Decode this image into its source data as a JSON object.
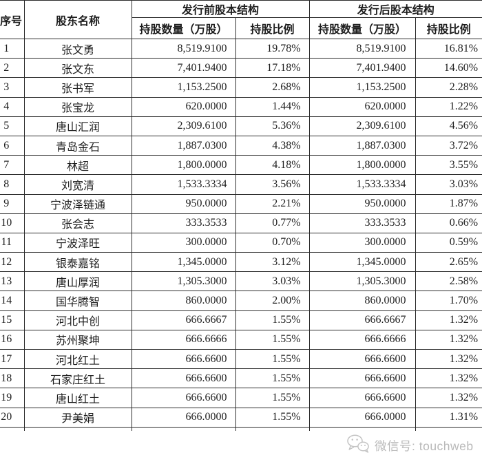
{
  "table": {
    "col_headers": {
      "index": "序号",
      "name": "股东名称",
      "pre_group": "发行前股本结构",
      "post_group": "发行后股本结构",
      "qty": "持股数量（万股）",
      "ratio": "持股比例"
    },
    "rows": [
      {
        "no": "1",
        "name": "张文勇",
        "pre_qty": "8,519.9100",
        "pre_ratio": "19.78%",
        "post_qty": "8,519.9100",
        "post_ratio": "16.81%"
      },
      {
        "no": "2",
        "name": "张文东",
        "pre_qty": "7,401.9400",
        "pre_ratio": "17.18%",
        "post_qty": "7,401.9400",
        "post_ratio": "14.60%"
      },
      {
        "no": "3",
        "name": "张书军",
        "pre_qty": "1,153.2500",
        "pre_ratio": "2.68%",
        "post_qty": "1,153.2500",
        "post_ratio": "2.28%"
      },
      {
        "no": "4",
        "name": "张宝龙",
        "pre_qty": "620.0000",
        "pre_ratio": "1.44%",
        "post_qty": "620.0000",
        "post_ratio": "1.22%"
      },
      {
        "no": "5",
        "name": "唐山汇润",
        "pre_qty": "2,309.6100",
        "pre_ratio": "5.36%",
        "post_qty": "2,309.6100",
        "post_ratio": "4.56%"
      },
      {
        "no": "6",
        "name": "青岛金石",
        "pre_qty": "1,887.0300",
        "pre_ratio": "4.38%",
        "post_qty": "1,887.0300",
        "post_ratio": "3.72%"
      },
      {
        "no": "7",
        "name": "林超",
        "pre_qty": "1,800.0000",
        "pre_ratio": "4.18%",
        "post_qty": "1,800.0000",
        "post_ratio": "3.55%"
      },
      {
        "no": "8",
        "name": "刘宽清",
        "pre_qty": "1,533.3334",
        "pre_ratio": "3.56%",
        "post_qty": "1,533.3334",
        "post_ratio": "3.03%"
      },
      {
        "no": "9",
        "name": "宁波泽链通",
        "pre_qty": "950.0000",
        "pre_ratio": "2.21%",
        "post_qty": "950.0000",
        "post_ratio": "1.87%"
      },
      {
        "no": "10",
        "name": "张会志",
        "pre_qty": "333.3533",
        "pre_ratio": "0.77%",
        "post_qty": "333.3533",
        "post_ratio": "0.66%"
      },
      {
        "no": "11",
        "name": "宁波泽旺",
        "pre_qty": "300.0000",
        "pre_ratio": "0.70%",
        "post_qty": "300.0000",
        "post_ratio": "0.59%"
      },
      {
        "no": "12",
        "name": "银泰嘉铭",
        "pre_qty": "1,345.0000",
        "pre_ratio": "3.12%",
        "post_qty": "1,345.0000",
        "post_ratio": "2.65%"
      },
      {
        "no": "13",
        "name": "唐山厚润",
        "pre_qty": "1,305.3000",
        "pre_ratio": "3.03%",
        "post_qty": "1,305.3000",
        "post_ratio": "2.58%"
      },
      {
        "no": "14",
        "name": "国华腾智",
        "pre_qty": "860.0000",
        "pre_ratio": "2.00%",
        "post_qty": "860.0000",
        "post_ratio": "1.70%"
      },
      {
        "no": "15",
        "name": "河北中创",
        "pre_qty": "666.6667",
        "pre_ratio": "1.55%",
        "post_qty": "666.6667",
        "post_ratio": "1.32%"
      },
      {
        "no": "16",
        "name": "苏州聚坤",
        "pre_qty": "666.6666",
        "pre_ratio": "1.55%",
        "post_qty": "666.6666",
        "post_ratio": "1.32%"
      },
      {
        "no": "17",
        "name": "河北红土",
        "pre_qty": "666.6600",
        "pre_ratio": "1.55%",
        "post_qty": "666.6600",
        "post_ratio": "1.32%"
      },
      {
        "no": "18",
        "name": "石家庄红土",
        "pre_qty": "666.6600",
        "pre_ratio": "1.55%",
        "post_qty": "666.6600",
        "post_ratio": "1.32%"
      },
      {
        "no": "19",
        "name": "唐山红土",
        "pre_qty": "666.6600",
        "pre_ratio": "1.55%",
        "post_qty": "666.6600",
        "post_ratio": "1.32%"
      },
      {
        "no": "20",
        "name": "尹美娟",
        "pre_qty": "666.0000",
        "pre_ratio": "1.55%",
        "post_qty": "666.0000",
        "post_ratio": "1.31%"
      }
    ]
  },
  "footer": {
    "wechat_label": "微信号: touchweb"
  },
  "colors": {
    "border": "#2b2b2b",
    "text": "#1d1d1d",
    "watermark": "#b9b9b9",
    "background": "#ffffff"
  }
}
